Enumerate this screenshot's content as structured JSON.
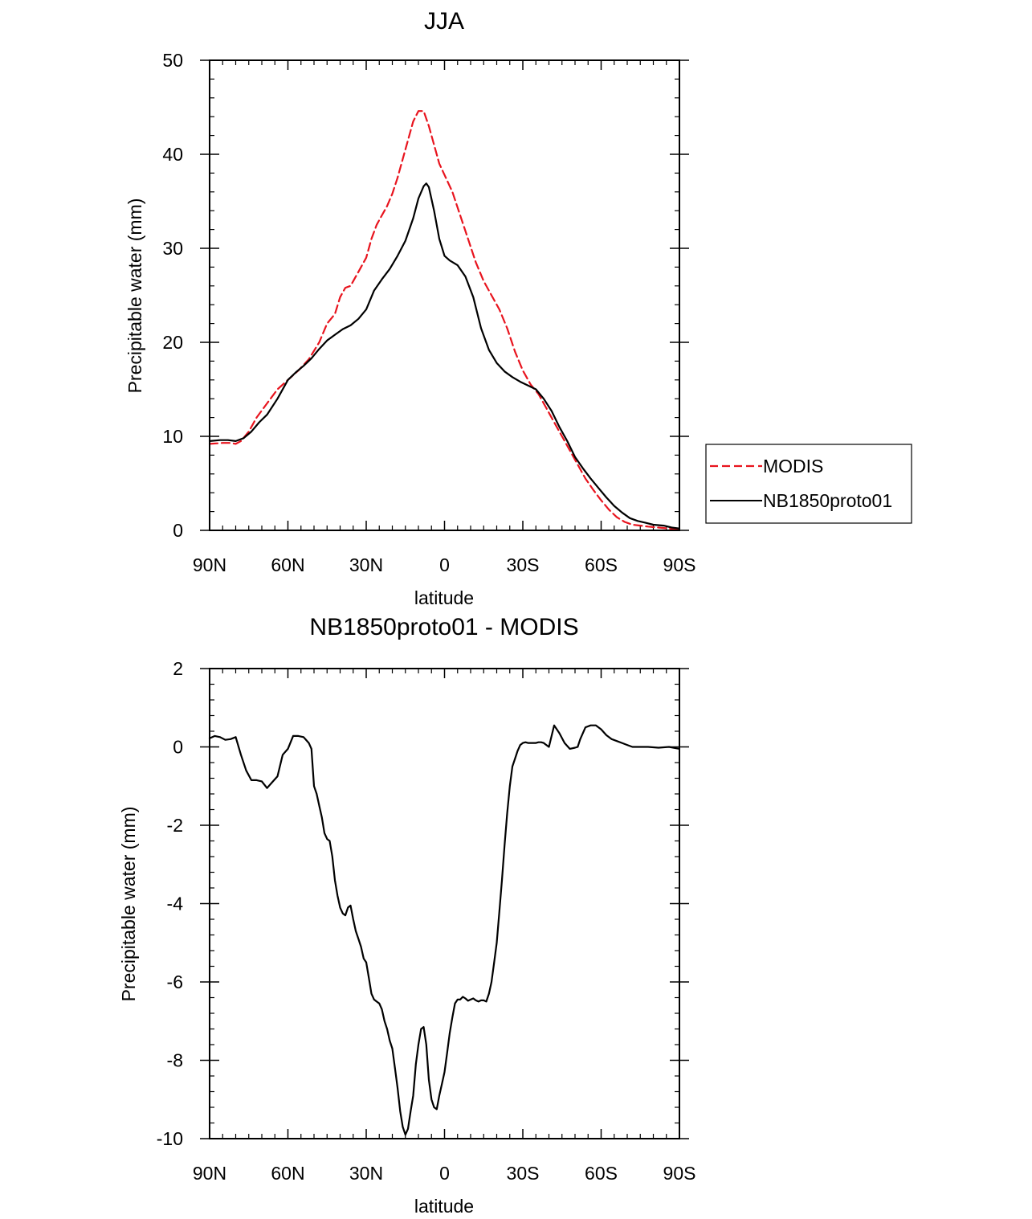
{
  "chart_data": [
    {
      "type": "line",
      "title": "JJA",
      "xlabel": "latitude",
      "ylabel": "Precipitable water (mm)",
      "xlim": [
        90,
        -90
      ],
      "ylim": [
        0,
        50
      ],
      "x_ticks": [
        90,
        60,
        30,
        0,
        -30,
        -60,
        -90
      ],
      "x_tick_labels": [
        "90N",
        "60N",
        "30N",
        "0",
        "30S",
        "60S",
        "90S"
      ],
      "y_ticks": [
        0,
        10,
        20,
        30,
        40,
        50
      ],
      "y_tick_labels": [
        "0",
        "10",
        "20",
        "30",
        "40",
        "50"
      ],
      "legend": {
        "placement": "right",
        "entries": [
          "MODIS",
          "NB1850proto01"
        ]
      },
      "series": [
        {
          "name": "MODIS",
          "color": "#e8141e",
          "dash": "dashed",
          "x": [
            90,
            85,
            82,
            80,
            78,
            75,
            72,
            68,
            64,
            60,
            56,
            52,
            48,
            45,
            42,
            40,
            38,
            36,
            33,
            30,
            28,
            26,
            24,
            22,
            20,
            18,
            16,
            14,
            12,
            10,
            8,
            6,
            4,
            2,
            0,
            -3,
            -6,
            -9,
            -12,
            -15,
            -18,
            -21,
            -24,
            -27,
            -30,
            -33,
            -36,
            -39,
            -42,
            -45,
            -48,
            -51,
            -54,
            -57,
            -60,
            -63,
            -66,
            -69,
            -72,
            -75,
            -78,
            -82,
            -86,
            -90
          ],
          "y": [
            9.2,
            9.3,
            9.3,
            9.2,
            9.5,
            10.5,
            12,
            13.5,
            15,
            16,
            17,
            18.2,
            20,
            22,
            23,
            24.8,
            25.8,
            26,
            27.5,
            29,
            31,
            32.5,
            33.5,
            34.5,
            35.8,
            37.5,
            39.5,
            41.5,
            43.5,
            44.6,
            44.6,
            43,
            41,
            39,
            37.8,
            36,
            33.5,
            31,
            28.5,
            26.5,
            25,
            23.5,
            21.5,
            19,
            17,
            15.5,
            14.5,
            13,
            11.5,
            10,
            8.5,
            7,
            5.5,
            4.3,
            3.2,
            2.2,
            1.4,
            0.9,
            0.6,
            0.5,
            0.4,
            0.3,
            0.2,
            0.1
          ]
        },
        {
          "name": "NB1850proto01",
          "color": "#000000",
          "dash": "solid",
          "x": [
            90,
            86,
            83,
            80,
            77,
            74,
            71,
            68,
            64,
            60,
            57,
            54,
            51,
            48,
            45,
            42,
            39,
            36,
            33,
            30,
            27,
            24,
            21,
            18,
            15,
            12,
            10,
            8,
            7,
            6,
            4,
            2,
            0,
            -2,
            -5,
            -8,
            -11,
            -14,
            -17,
            -20,
            -23,
            -26,
            -29,
            -32,
            -35,
            -38,
            -41,
            -44,
            -47,
            -50,
            -53,
            -56,
            -59,
            -62,
            -65,
            -68,
            -71,
            -74,
            -77,
            -80,
            -84,
            -87,
            -90
          ],
          "y": [
            9.5,
            9.6,
            9.6,
            9.5,
            9.8,
            10.5,
            11.5,
            12.3,
            14,
            16,
            16.8,
            17.5,
            18.3,
            19.3,
            20.2,
            20.8,
            21.4,
            21.8,
            22.5,
            23.5,
            25.5,
            26.7,
            27.8,
            29.2,
            30.8,
            33.2,
            35.3,
            36.6,
            36.9,
            36.5,
            34,
            31,
            29.2,
            28.7,
            28.2,
            27,
            24.8,
            21.5,
            19.2,
            17.8,
            16.9,
            16.3,
            15.8,
            15.4,
            15,
            14,
            12.7,
            11,
            9.5,
            7.8,
            6.6,
            5.5,
            4.5,
            3.5,
            2.6,
            1.9,
            1.3,
            1,
            0.8,
            0.6,
            0.5,
            0.3,
            0.2
          ]
        }
      ]
    },
    {
      "type": "line",
      "title": "NB1850proto01 - MODIS",
      "xlabel": "latitude",
      "ylabel": "Precipitable water (mm)",
      "xlim": [
        90,
        -90
      ],
      "ylim": [
        -10,
        2
      ],
      "x_ticks": [
        90,
        60,
        30,
        0,
        -30,
        -60,
        -90
      ],
      "x_tick_labels": [
        "90N",
        "60N",
        "30N",
        "0",
        "30S",
        "60S",
        "90S"
      ],
      "y_ticks": [
        -10,
        -8,
        -6,
        -4,
        -2,
        0,
        2
      ],
      "y_tick_labels": [
        "-10",
        "-8",
        "-6",
        "-4",
        "-2",
        "0",
        "2"
      ],
      "series": [
        {
          "name": "NB1850proto01 - MODIS",
          "color": "#000000",
          "dash": "solid",
          "x": [
            90,
            88,
            86,
            84,
            82,
            80,
            78,
            76,
            74,
            72,
            70,
            68,
            66,
            64,
            62,
            60,
            58,
            56,
            54,
            52,
            51,
            50,
            49,
            48,
            47,
            46,
            45,
            44,
            43,
            42,
            41,
            40,
            39,
            38,
            37,
            36,
            35,
            34,
            33,
            32,
            31,
            30,
            29,
            28,
            27,
            26,
            25,
            24,
            23,
            22,
            21,
            20,
            19,
            18,
            17,
            16,
            15,
            14,
            13,
            12,
            11,
            10,
            9,
            8,
            7,
            6,
            5,
            4,
            3,
            2,
            1,
            0,
            -1,
            -2,
            -3,
            -4,
            -5,
            -6,
            -7,
            -8,
            -9,
            -10,
            -11,
            -12,
            -13,
            -14,
            -15,
            -16,
            -17,
            -18,
            -19,
            -20,
            -21,
            -22,
            -23,
            -24,
            -25,
            -26,
            -27,
            -28,
            -29,
            -30,
            -31,
            -32,
            -33,
            -34,
            -35,
            -36,
            -37,
            -38,
            -39,
            -40,
            -42,
            -44,
            -46,
            -48,
            -50,
            -51,
            -52,
            -54,
            -56,
            -58,
            -60,
            -62,
            -64,
            -66,
            -68,
            -70,
            -72,
            -74,
            -78,
            -82,
            -86,
            -90
          ],
          "y": [
            0.22,
            0.28,
            0.25,
            0.18,
            0.2,
            0.25,
            -0.2,
            -0.6,
            -0.85,
            -0.85,
            -0.88,
            -1.05,
            -0.9,
            -0.75,
            -0.2,
            -0.05,
            0.28,
            0.28,
            0.25,
            0.1,
            -0.05,
            -1.0,
            -1.2,
            -1.5,
            -1.8,
            -2.2,
            -2.35,
            -2.4,
            -2.8,
            -3.4,
            -3.8,
            -4.1,
            -4.25,
            -4.3,
            -4.1,
            -4.05,
            -4.4,
            -4.7,
            -4.9,
            -5.1,
            -5.4,
            -5.5,
            -5.9,
            -6.3,
            -6.45,
            -6.5,
            -6.55,
            -6.7,
            -7.0,
            -7.2,
            -7.5,
            -7.7,
            -8.2,
            -8.7,
            -9.3,
            -9.7,
            -9.9,
            -9.75,
            -9.3,
            -8.9,
            -8.1,
            -7.6,
            -7.2,
            -7.15,
            -7.6,
            -8.5,
            -9.0,
            -9.2,
            -9.25,
            -8.9,
            -8.6,
            -8.3,
            -7.8,
            -7.3,
            -6.9,
            -6.55,
            -6.45,
            -6.45,
            -6.38,
            -6.42,
            -6.48,
            -6.45,
            -6.42,
            -6.47,
            -6.5,
            -6.47,
            -6.47,
            -6.5,
            -6.3,
            -6.0,
            -5.5,
            -5.0,
            -4.2,
            -3.4,
            -2.5,
            -1.7,
            -1.0,
            -0.5,
            -0.3,
            -0.1,
            0.05,
            0.1,
            0.12,
            0.1,
            0.1,
            0.1,
            0.1,
            0.12,
            0.12,
            0.1,
            0.05,
            0.0,
            0.55,
            0.35,
            0.1,
            -0.05,
            -0.02,
            0.0,
            0.2,
            0.5,
            0.55,
            0.55,
            0.45,
            0.3,
            0.2,
            0.15,
            0.1,
            0.05,
            0.0,
            0.0,
            0.0,
            -0.02,
            0.0,
            -0.05
          ]
        }
      ]
    }
  ]
}
